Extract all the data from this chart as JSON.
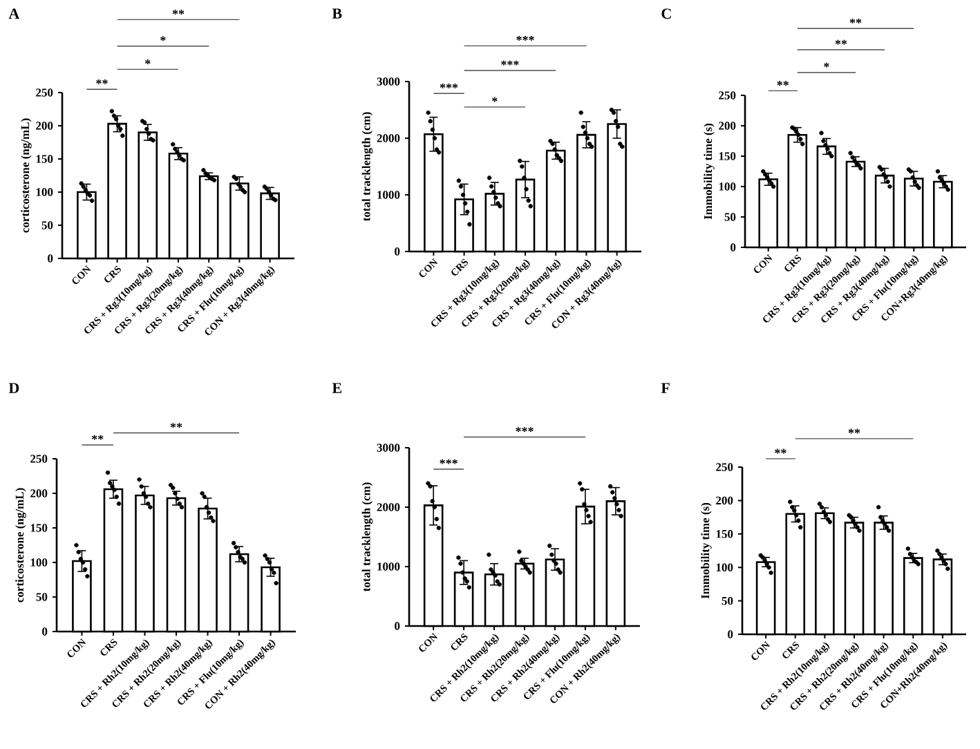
{
  "chart_data": [
    {
      "type": "bar",
      "title": "A",
      "ylabel": "corticosterone (ng/mL)",
      "categories": [
        "CON",
        "CRS",
        "CRS + Rg3(10mg/kg)",
        "CRS + Rg3(20mg/kg)",
        "CRS + Rg3(40mg/kg)",
        "CRS + Flu(10mg/kg)",
        "CON + Rg3(40mg/kg)"
      ],
      "ylim": [
        0,
        250
      ],
      "yticks": [
        0,
        50,
        100,
        150,
        200,
        250
      ],
      "annotations": [
        "**",
        "*",
        "*",
        "**"
      ],
      "series": [
        {
          "color": "#ffffff",
          "values": [
            100,
            203,
            190,
            158,
            124,
            113,
            98
          ],
          "errors": [
            12,
            12,
            12,
            9,
            5,
            10,
            9
          ]
        },
        {
          "type": "scatter",
          "color": "#000000",
          "x": [
            "CON",
            "CON",
            "CON",
            "CON",
            "CON",
            "CON",
            "CRS",
            "CRS",
            "CRS",
            "CRS",
            "CRS",
            "CRS",
            "CRS + Rg3(10mg/kg)",
            "CRS + Rg3(10mg/kg)",
            "CRS + Rg3(10mg/kg)",
            "CRS + Rg3(10mg/kg)",
            "CRS + Rg3(10mg/kg)",
            "CRS + Rg3(10mg/kg)",
            "CRS + Rg3(20mg/kg)",
            "CRS + Rg3(20mg/kg)",
            "CRS + Rg3(20mg/kg)",
            "CRS + Rg3(20mg/kg)",
            "CRS + Rg3(20mg/kg)",
            "CRS + Rg3(20mg/kg)",
            "CRS + Rg3(40mg/kg)",
            "CRS + Rg3(40mg/kg)",
            "CRS + Rg3(40mg/kg)",
            "CRS + Rg3(40mg/kg)",
            "CRS + Rg3(40mg/kg)",
            "CRS + Rg3(40mg/kg)",
            "CRS + Flu(10mg/kg)",
            "CRS + Flu(10mg/kg)",
            "CRS + Flu(10mg/kg)",
            "CRS + Flu(10mg/kg)",
            "CRS + Flu(10mg/kg)",
            "CRS + Flu(10mg/kg)",
            "CON + Rg3(40mg/kg)",
            "CON + Rg3(40mg/kg)",
            "CON + Rg3(40mg/kg)",
            "CON + Rg3(40mg/kg)",
            "CON + Rg3(40mg/kg)",
            "CON + Rg3(40mg/kg)"
          ],
          "values": [
            113,
            108,
            103,
            98,
            95,
            87,
            222,
            215,
            210,
            200,
            195,
            185,
            207,
            205,
            195,
            188,
            180,
            178,
            172,
            165,
            160,
            155,
            150,
            148,
            133,
            128,
            125,
            122,
            120,
            118,
            123,
            120,
            112,
            108,
            103,
            100,
            108,
            105,
            100,
            95,
            90,
            88
          ]
        }
      ]
    },
    {
      "type": "bar",
      "title": "B",
      "ylabel": "total tracklength (cm)",
      "categories": [
        "CON",
        "CRS",
        "CRS + Rg3(10mg/kg)",
        "CRS + Rg3(20mg/kg)",
        "CRS + Rg3(40mg/kg)",
        "CRS + Flu(10mg/kg)",
        "CON + Rg3(40mg/kg)"
      ],
      "ylim": [
        0,
        3000
      ],
      "yticks": [
        0,
        1000,
        2000,
        3000
      ],
      "annotations": [
        "***",
        "*",
        "***",
        "***"
      ],
      "series": [
        {
          "color": "#ffffff",
          "values": [
            2070,
            920,
            1020,
            1270,
            1780,
            2060,
            2250
          ],
          "errors": [
            300,
            270,
            200,
            320,
            150,
            230,
            250
          ]
        },
        {
          "type": "scatter",
          "color": "#000000",
          "x": [
            "CON",
            "CON",
            "CON",
            "CON",
            "CON",
            "CON",
            "CRS",
            "CRS",
            "CRS",
            "CRS",
            "CRS",
            "CRS",
            "CRS + Rg3(10mg/kg)",
            "CRS + Rg3(10mg/kg)",
            "CRS + Rg3(10mg/kg)",
            "CRS + Rg3(10mg/kg)",
            "CRS + Rg3(10mg/kg)",
            "CRS + Rg3(10mg/kg)",
            "CRS + Rg3(20mg/kg)",
            "CRS + Rg3(20mg/kg)",
            "CRS + Rg3(20mg/kg)",
            "CRS + Rg3(20mg/kg)",
            "CRS + Rg3(20mg/kg)",
            "CRS + Rg3(20mg/kg)",
            "CRS + Rg3(40mg/kg)",
            "CRS + Rg3(40mg/kg)",
            "CRS + Rg3(40mg/kg)",
            "CRS + Rg3(40mg/kg)",
            "CRS + Rg3(40mg/kg)",
            "CRS + Rg3(40mg/kg)",
            "CRS + Flu(10mg/kg)",
            "CRS + Flu(10mg/kg)",
            "CRS + Flu(10mg/kg)",
            "CRS + Flu(10mg/kg)",
            "CRS + Flu(10mg/kg)",
            "CRS + Flu(10mg/kg)",
            "CON + Rg3(40mg/kg)",
            "CON + Rg3(40mg/kg)",
            "CON + Rg3(40mg/kg)",
            "CON + Rg3(40mg/kg)",
            "CON + Rg3(40mg/kg)",
            "CON + Rg3(40mg/kg)"
          ],
          "values": [
            2450,
            2300,
            2150,
            2000,
            1800,
            1750,
            1250,
            1150,
            1000,
            850,
            700,
            480,
            1300,
            1150,
            1050,
            950,
            850,
            800,
            1600,
            1500,
            1300,
            1100,
            900,
            800,
            1950,
            1900,
            1800,
            1700,
            1650,
            1600,
            2450,
            2200,
            2100,
            2000,
            1900,
            1850,
            2500,
            2450,
            2300,
            2200,
            1900,
            1850
          ]
        }
      ]
    },
    {
      "type": "bar",
      "title": "C",
      "ylabel": "Immobility time (s)",
      "categories": [
        "CON",
        "CRS",
        "CRS + Rg3(10mg/kg)",
        "CRS + Rg3(20mg/kg)",
        "CRS + Rg3(40mg/kg)",
        "CRS + Flu(10mg/kg)",
        "CON+Rg3(40mg/kg)"
      ],
      "ylim": [
        0,
        250
      ],
      "yticks": [
        0,
        50,
        100,
        150,
        200,
        250
      ],
      "annotations": [
        "**",
        "*",
        "**",
        "**"
      ],
      "series": [
        {
          "color": "#ffffff",
          "values": [
            112,
            185,
            166,
            141,
            118,
            113,
            108
          ],
          "errors": [
            10,
            12,
            13,
            8,
            12,
            12,
            10
          ]
        },
        {
          "type": "scatter",
          "color": "#000000",
          "x": [
            "CON",
            "CON",
            "CON",
            "CON",
            "CON",
            "CON",
            "CRS",
            "CRS",
            "CRS",
            "CRS",
            "CRS",
            "CRS",
            "CRS + Rg3(10mg/kg)",
            "CRS + Rg3(10mg/kg)",
            "CRS + Rg3(10mg/kg)",
            "CRS + Rg3(10mg/kg)",
            "CRS + Rg3(10mg/kg)",
            "CRS + Rg3(10mg/kg)",
            "CRS + Rg3(20mg/kg)",
            "CRS + Rg3(20mg/kg)",
            "CRS + Rg3(20mg/kg)",
            "CRS + Rg3(20mg/kg)",
            "CRS + Rg3(20mg/kg)",
            "CRS + Rg3(20mg/kg)",
            "CRS + Rg3(40mg/kg)",
            "CRS + Rg3(40mg/kg)",
            "CRS + Rg3(40mg/kg)",
            "CRS + Rg3(40mg/kg)",
            "CRS + Rg3(40mg/kg)",
            "CRS + Rg3(40mg/kg)",
            "CRS + Flu(10mg/kg)",
            "CRS + Flu(10mg/kg)",
            "CRS + Flu(10mg/kg)",
            "CRS + Flu(10mg/kg)",
            "CRS + Flu(10mg/kg)",
            "CRS + Flu(10mg/kg)",
            "CON+Rg3(40mg/kg)",
            "CON+Rg3(40mg/kg)",
            "CON+Rg3(40mg/kg)",
            "CON+Rg3(40mg/kg)",
            "CON+Rg3(40mg/kg)",
            "CON+Rg3(40mg/kg)"
          ],
          "values": [
            125,
            120,
            115,
            110,
            105,
            100,
            197,
            195,
            190,
            185,
            178,
            170,
            188,
            175,
            168,
            162,
            155,
            150,
            155,
            148,
            142,
            138,
            135,
            130,
            132,
            128,
            120,
            115,
            108,
            100,
            128,
            125,
            115,
            108,
            102,
            98,
            125,
            115,
            110,
            105,
            100,
            95
          ]
        }
      ]
    },
    {
      "type": "bar",
      "title": "D",
      "ylabel": "corticosterone (ng/mL)",
      "categories": [
        "CON",
        "CRS",
        "CRS + Rh2(10mg/kg)",
        "CRS + Rh2(20mg/kg)",
        "CRS + Rh2(40mg/kg)",
        "CRS + Flu(10mg/kg)",
        "CON + Rh2(40mg/kg)"
      ],
      "ylim": [
        0,
        250
      ],
      "yticks": [
        0,
        50,
        100,
        150,
        200,
        250
      ],
      "annotations": [
        "**",
        "**"
      ],
      "series": [
        {
          "color": "#ffffff",
          "values": [
            102,
            206,
            197,
            193,
            178,
            112,
            93
          ],
          "errors": [
            15,
            13,
            13,
            10,
            15,
            11,
            13
          ]
        },
        {
          "type": "scatter",
          "color": "#000000",
          "x": [
            "CON",
            "CON",
            "CON",
            "CON",
            "CON",
            "CON",
            "CRS",
            "CRS",
            "CRS",
            "CRS",
            "CRS",
            "CRS",
            "CRS + Rh2(10mg/kg)",
            "CRS + Rh2(10mg/kg)",
            "CRS + Rh2(10mg/kg)",
            "CRS + Rh2(10mg/kg)",
            "CRS + Rh2(10mg/kg)",
            "CRS + Rh2(10mg/kg)",
            "CRS + Rh2(20mg/kg)",
            "CRS + Rh2(20mg/kg)",
            "CRS + Rh2(20mg/kg)",
            "CRS + Rh2(20mg/kg)",
            "CRS + Rh2(20mg/kg)",
            "CRS + Rh2(20mg/kg)",
            "CRS + Rh2(40mg/kg)",
            "CRS + Rh2(40mg/kg)",
            "CRS + Rh2(40mg/kg)",
            "CRS + Rh2(40mg/kg)",
            "CRS + Rh2(40mg/kg)",
            "CRS + Rh2(40mg/kg)",
            "CRS + Flu(10mg/kg)",
            "CRS + Flu(10mg/kg)",
            "CRS + Flu(10mg/kg)",
            "CRS + Flu(10mg/kg)",
            "CRS + Flu(10mg/kg)",
            "CRS + Flu(10mg/kg)",
            "CON + Rh2(40mg/kg)",
            "CON + Rh2(40mg/kg)",
            "CON + Rh2(40mg/kg)",
            "CON + Rh2(40mg/kg)",
            "CON + Rh2(40mg/kg)",
            "CON + Rh2(40mg/kg)"
          ],
          "values": [
            125,
            115,
            105,
            100,
            90,
            80,
            230,
            215,
            210,
            205,
            195,
            185,
            220,
            210,
            200,
            195,
            185,
            180,
            212,
            208,
            200,
            192,
            185,
            180,
            200,
            195,
            180,
            172,
            165,
            160,
            128,
            122,
            115,
            108,
            105,
            100,
            110,
            105,
            100,
            90,
            85,
            70
          ]
        }
      ]
    },
    {
      "type": "bar",
      "title": "E",
      "ylabel": "total tracklength (cm)",
      "categories": [
        "CON",
        "CRS",
        "CRS + Rh2(10mg/kg)",
        "CRS + Rh2(20mg/kg)",
        "CRS + Rh2(40mg/kg)",
        "CRS + Flu(10mg/kg)",
        "CON + Rh2(40mg/kg)"
      ],
      "ylim": [
        0,
        3000
      ],
      "yticks": [
        0,
        1000,
        2000,
        3000
      ],
      "annotations": [
        "***",
        "***"
      ],
      "series": [
        {
          "color": "#ffffff",
          "values": [
            2030,
            900,
            870,
            1050,
            1120,
            2010,
            2100
          ],
          "errors": [
            330,
            200,
            180,
            90,
            180,
            290,
            230
          ]
        },
        {
          "type": "scatter",
          "color": "#000000",
          "x": [
            "CON",
            "CON",
            "CON",
            "CON",
            "CON",
            "CON",
            "CRS",
            "CRS",
            "CRS",
            "CRS",
            "CRS",
            "CRS",
            "CRS + Rh2(10mg/kg)",
            "CRS + Rh2(10mg/kg)",
            "CRS + Rh2(10mg/kg)",
            "CRS + Rh2(10mg/kg)",
            "CRS + Rh2(10mg/kg)",
            "CRS + Rh2(10mg/kg)",
            "CRS + Rh2(20mg/kg)",
            "CRS + Rh2(20mg/kg)",
            "CRS + Rh2(20mg/kg)",
            "CRS + Rh2(20mg/kg)",
            "CRS + Rh2(20mg/kg)",
            "CRS + Rh2(20mg/kg)",
            "CRS + Rh2(40mg/kg)",
            "CRS + Rh2(40mg/kg)",
            "CRS + Rh2(40mg/kg)",
            "CRS + Rh2(40mg/kg)",
            "CRS + Rh2(40mg/kg)",
            "CRS + Rh2(40mg/kg)",
            "CRS + Flu(10mg/kg)",
            "CRS + Flu(10mg/kg)",
            "CRS + Flu(10mg/kg)",
            "CRS + Flu(10mg/kg)",
            "CRS + Flu(10mg/kg)",
            "CRS + Flu(10mg/kg)",
            "CON + Rh2(40mg/kg)",
            "CON + Rh2(40mg/kg)",
            "CON + Rh2(40mg/kg)",
            "CON + Rh2(40mg/kg)",
            "CON + Rh2(40mg/kg)",
            "CON + Rh2(40mg/kg)"
          ],
          "values": [
            2400,
            2350,
            2100,
            2000,
            1800,
            1650,
            1150,
            1050,
            900,
            800,
            750,
            650,
            1200,
            950,
            900,
            850,
            750,
            700,
            1250,
            1100,
            1050,
            1000,
            950,
            900,
            1350,
            1200,
            1100,
            1050,
            950,
            900,
            2400,
            2300,
            2050,
            1950,
            1850,
            1750,
            2350,
            2250,
            2150,
            2050,
            1950,
            1850
          ]
        }
      ]
    },
    {
      "type": "bar",
      "title": "F",
      "ylabel": "Immobility time (s)",
      "categories": [
        "CON",
        "CRS",
        "CRS + Rh2(10mg/kg)",
        "CRS + Rh2(20mg/kg)",
        "CRS + Rh2(40mg/kg)",
        "CRS + Flu(10mg/kg)",
        "CON+Rh2(40mg/kg)"
      ],
      "ylim": [
        0,
        250
      ],
      "yticks": [
        0,
        50,
        100,
        150,
        200,
        250
      ],
      "annotations": [
        "**",
        "**"
      ],
      "series": [
        {
          "color": "#ffffff",
          "values": [
            108,
            180,
            181,
            167,
            167,
            114,
            112
          ],
          "errors": [
            7,
            12,
            8,
            8,
            10,
            7,
            8
          ]
        },
        {
          "type": "scatter",
          "color": "#000000",
          "x": [
            "CON",
            "CON",
            "CON",
            "CON",
            "CON",
            "CON",
            "CRS",
            "CRS",
            "CRS",
            "CRS",
            "CRS",
            "CRS",
            "CRS + Rh2(10mg/kg)",
            "CRS + Rh2(10mg/kg)",
            "CRS + Rh2(10mg/kg)",
            "CRS + Rh2(10mg/kg)",
            "CRS + Rh2(10mg/kg)",
            "CRS + Rh2(10mg/kg)",
            "CRS + Rh2(20mg/kg)",
            "CRS + Rh2(20mg/kg)",
            "CRS + Rh2(20mg/kg)",
            "CRS + Rh2(20mg/kg)",
            "CRS + Rh2(20mg/kg)",
            "CRS + Rh2(20mg/kg)",
            "CRS + Rh2(40mg/kg)",
            "CRS + Rh2(40mg/kg)",
            "CRS + Rh2(40mg/kg)",
            "CRS + Rh2(40mg/kg)",
            "CRS + Rh2(40mg/kg)",
            "CRS + Rh2(40mg/kg)",
            "CRS + Flu(10mg/kg)",
            "CRS + Flu(10mg/kg)",
            "CRS + Flu(10mg/kg)",
            "CRS + Flu(10mg/kg)",
            "CRS + Flu(10mg/kg)",
            "CRS + Flu(10mg/kg)",
            "CON+Rh2(40mg/kg)",
            "CON+Rh2(40mg/kg)",
            "CON+Rh2(40mg/kg)",
            "CON+Rh2(40mg/kg)",
            "CON+Rh2(40mg/kg)",
            "CON+Rh2(40mg/kg)"
          ],
          "values": [
            118,
            115,
            110,
            105,
            100,
            92,
            198,
            190,
            185,
            178,
            170,
            160,
            195,
            190,
            183,
            178,
            172,
            168,
            178,
            175,
            170,
            165,
            160,
            155,
            190,
            175,
            170,
            165,
            160,
            155,
            128,
            120,
            115,
            110,
            108,
            105,
            125,
            120,
            115,
            110,
            105,
            98
          ]
        }
      ]
    }
  ]
}
